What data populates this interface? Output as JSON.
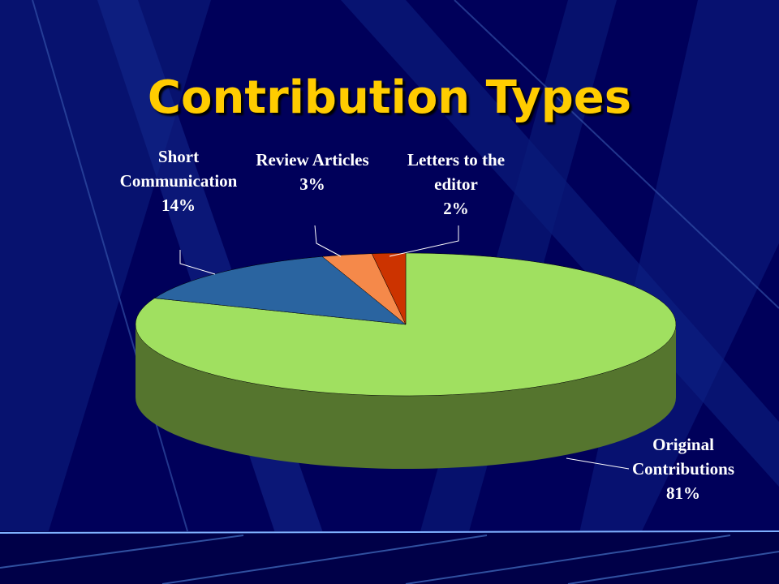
{
  "chart_data": {
    "type": "pie",
    "title": "Contribution Types",
    "categories": [
      "Original Contributions",
      "Short Communication",
      "Review Articles",
      "Letters to the editor"
    ],
    "values": [
      81,
      14,
      3,
      2
    ],
    "value_labels": [
      "81%",
      "14%",
      "3%",
      "2%"
    ],
    "colors": [
      "#a0e060",
      "#2a64a0",
      "#f5894a",
      "#cc3300"
    ],
    "side_colors": [
      "#55752e",
      "#1b4270",
      "#a85a30",
      "#882200"
    ]
  }
}
